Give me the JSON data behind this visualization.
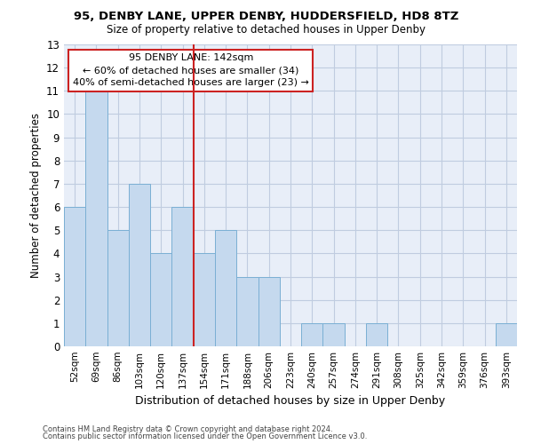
{
  "title1": "95, DENBY LANE, UPPER DENBY, HUDDERSFIELD, HD8 8TZ",
  "title2": "Size of property relative to detached houses in Upper Denby",
  "xlabel": "Distribution of detached houses by size in Upper Denby",
  "ylabel": "Number of detached properties",
  "categories": [
    "52sqm",
    "69sqm",
    "86sqm",
    "103sqm",
    "120sqm",
    "137sqm",
    "154sqm",
    "171sqm",
    "188sqm",
    "206sqm",
    "223sqm",
    "240sqm",
    "257sqm",
    "274sqm",
    "291sqm",
    "308sqm",
    "325sqm",
    "342sqm",
    "359sqm",
    "376sqm",
    "393sqm"
  ],
  "values": [
    6,
    11,
    5,
    7,
    4,
    6,
    4,
    5,
    3,
    3,
    0,
    1,
    1,
    0,
    1,
    0,
    0,
    0,
    0,
    0,
    1
  ],
  "bar_color": "#c5d9ee",
  "bar_edge_color": "#7aafd4",
  "ylim": [
    0,
    13
  ],
  "yticks": [
    0,
    1,
    2,
    3,
    4,
    5,
    6,
    7,
    8,
    9,
    10,
    11,
    12,
    13
  ],
  "vline_x": 5.5,
  "vline_color": "#cc2222",
  "annotation_box_text": "95 DENBY LANE: 142sqm\n← 60% of detached houses are smaller (34)\n40% of semi-detached houses are larger (23) →",
  "annotation_box_color": "#cc2222",
  "footer1": "Contains HM Land Registry data © Crown copyright and database right 2024.",
  "footer2": "Contains public sector information licensed under the Open Government Licence v3.0.",
  "background_color": "#e8eef8",
  "grid_color": "#c0cce0"
}
